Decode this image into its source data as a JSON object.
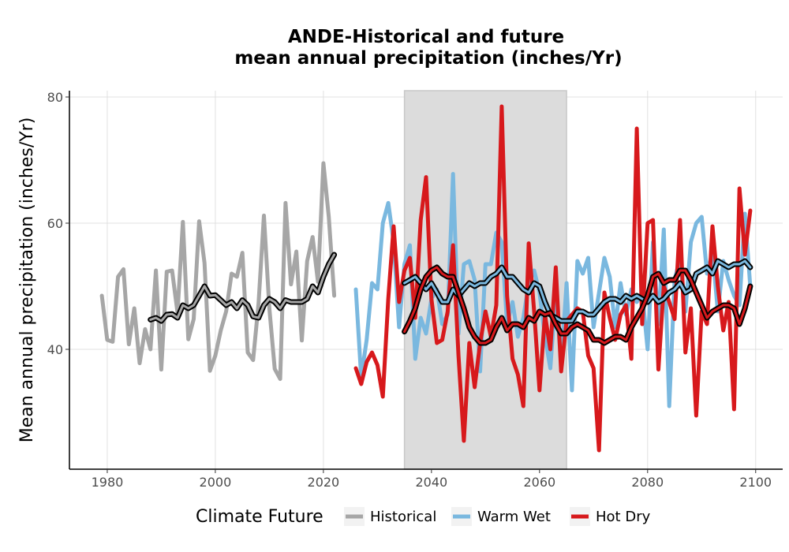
{
  "chart_data": {
    "type": "line",
    "title": [
      "ANDE-Historical and future",
      "mean annual precipitation (inches/Yr)"
    ],
    "xlabel": "",
    "ylabel": "Mean annual precipitation (inches/Yr)",
    "xlim": [
      1973,
      2105
    ],
    "ylim": [
      21,
      81
    ],
    "xticks": [
      1980,
      2000,
      2020,
      2040,
      2060,
      2080,
      2100
    ],
    "yticks": [
      40,
      60,
      80
    ],
    "grid": true,
    "shaded_period": [
      2035,
      2065
    ],
    "legend": {
      "title": "Climate Future",
      "placement": "bottom",
      "entries": [
        "Historical",
        "Warm Wet",
        "Hot Dry"
      ]
    },
    "colors": {
      "Historical": "#a6a6a6",
      "Warm Wet": "#7ab8df",
      "Hot Dry": "#d7191c",
      "smooth_outline": "#000000",
      "shade": "#dcdcdc"
    },
    "series": [
      {
        "name": "Historical",
        "x": [
          1979,
          1980,
          1981,
          1982,
          1983,
          1984,
          1985,
          1986,
          1987,
          1988,
          1989,
          1990,
          1991,
          1992,
          1993,
          1994,
          1995,
          1996,
          1997,
          1998,
          1999,
          2000,
          2001,
          2002,
          2003,
          2004,
          2005,
          2006,
          2007,
          2008,
          2009,
          2010,
          2011,
          2012,
          2013,
          2014,
          2015,
          2016,
          2017,
          2018,
          2019,
          2020,
          2021,
          2022
        ],
        "y": [
          48.5,
          41.5,
          41.2,
          51.5,
          52.7,
          40.8,
          46.5,
          37.8,
          43.2,
          40.0,
          52.5,
          36.8,
          52.3,
          52.5,
          45.8,
          60.2,
          41.6,
          44.8,
          60.3,
          53.7,
          36.6,
          39.0,
          43.0,
          46.0,
          52.0,
          51.5,
          55.3,
          39.5,
          38.3,
          47.3,
          61.2,
          46.5,
          36.9,
          35.3,
          63.2,
          50.3,
          55.5,
          41.4,
          54.0,
          57.8,
          50.7,
          69.5,
          61.0,
          48.5
        ]
      },
      {
        "name": "Warm Wet",
        "x": [
          2026,
          2027,
          2028,
          2029,
          2030,
          2031,
          2032,
          2033,
          2034,
          2035,
          2036,
          2037,
          2038,
          2039,
          2040,
          2041,
          2042,
          2043,
          2044,
          2045,
          2046,
          2047,
          2048,
          2049,
          2050,
          2051,
          2052,
          2053,
          2054,
          2055,
          2056,
          2057,
          2058,
          2059,
          2060,
          2061,
          2062,
          2063,
          2064,
          2065,
          2066,
          2067,
          2068,
          2069,
          2070,
          2071,
          2072,
          2073,
          2074,
          2075,
          2076,
          2077,
          2078,
          2079,
          2080,
          2081,
          2082,
          2083,
          2084,
          2085,
          2086,
          2087,
          2088,
          2089,
          2090,
          2091,
          2092,
          2093,
          2094,
          2095,
          2096,
          2097,
          2098,
          2099
        ],
        "y": [
          49.5,
          35.5,
          41.5,
          50.5,
          49.5,
          60.0,
          63.2,
          57.0,
          43.5,
          53.5,
          56.5,
          38.5,
          45.0,
          42.5,
          48.0,
          49.5,
          44.0,
          45.5,
          67.8,
          42.5,
          53.5,
          54.0,
          51.0,
          36.5,
          53.5,
          53.5,
          58.5,
          57.0,
          44.0,
          47.5,
          42.0,
          45.0,
          50.5,
          52.5,
          49.0,
          42.0,
          37.0,
          49.0,
          37.5,
          50.5,
          33.5,
          54.0,
          52.0,
          54.5,
          43.5,
          49.0,
          54.5,
          51.5,
          43.5,
          50.5,
          45.5,
          49.5,
          47.5,
          49.0,
          40.0,
          57.0,
          44.0,
          59.0,
          31.0,
          51.0,
          54.5,
          46.0,
          57.0,
          60.0,
          61.0,
          52.0,
          55.5,
          46.0,
          54.0,
          51.0,
          48.5,
          47.0,
          61.5,
          50.0
        ]
      },
      {
        "name": "Hot Dry",
        "x": [
          2026,
          2027,
          2028,
          2029,
          2030,
          2031,
          2032,
          2033,
          2034,
          2035,
          2036,
          2037,
          2038,
          2039,
          2040,
          2041,
          2042,
          2043,
          2044,
          2045,
          2046,
          2047,
          2048,
          2049,
          2050,
          2051,
          2052,
          2053,
          2054,
          2055,
          2056,
          2057,
          2058,
          2059,
          2060,
          2061,
          2062,
          2063,
          2064,
          2065,
          2066,
          2067,
          2068,
          2069,
          2070,
          2071,
          2072,
          2073,
          2074,
          2075,
          2076,
          2077,
          2078,
          2079,
          2080,
          2081,
          2082,
          2083,
          2084,
          2085,
          2086,
          2087,
          2088,
          2089,
          2090,
          2091,
          2092,
          2093,
          2094,
          2095,
          2096,
          2097,
          2098,
          2099
        ],
        "y": [
          37.0,
          34.5,
          38.0,
          39.5,
          37.5,
          32.5,
          48.0,
          59.5,
          47.5,
          52.5,
          54.5,
          45.0,
          60.5,
          67.3,
          48.0,
          41.0,
          41.5,
          46.0,
          56.5,
          39.0,
          25.5,
          41.0,
          34.0,
          41.0,
          46.0,
          42.0,
          47.0,
          78.5,
          48.5,
          38.5,
          36.0,
          31.0,
          56.8,
          46.0,
          33.5,
          45.5,
          40.0,
          53.0,
          36.5,
          44.5,
          45.5,
          46.5,
          46.0,
          39.0,
          37.0,
          24.0,
          49.0,
          45.0,
          41.5,
          45.5,
          47.0,
          38.5,
          75.0,
          44.0,
          60.0,
          60.5,
          36.8,
          50.0,
          47.5,
          44.8,
          60.5,
          39.5,
          46.5,
          29.5,
          46.0,
          44.0,
          59.5,
          50.0,
          43.0,
          47.5,
          30.5,
          65.5,
          55.0,
          62.0
        ]
      },
      {
        "name": "Historical (smoothed)",
        "x": [
          1988,
          1989,
          1990,
          1991,
          1992,
          1993,
          1994,
          1995,
          1996,
          1997,
          1998,
          1999,
          2000,
          2001,
          2002,
          2003,
          2004,
          2005,
          2006,
          2007,
          2008,
          2009,
          2010,
          2011,
          2012,
          2013,
          2014,
          2015,
          2016,
          2017,
          2018,
          2019,
          2020,
          2021,
          2022
        ],
        "y": [
          44.7,
          45.0,
          44.5,
          45.5,
          45.6,
          45.0,
          47.0,
          46.5,
          47.0,
          48.5,
          50.0,
          48.5,
          48.6,
          47.8,
          47.0,
          47.5,
          46.5,
          47.8,
          47.0,
          45.2,
          45.0,
          47.0,
          48.0,
          47.5,
          46.5,
          47.8,
          47.5,
          47.5,
          47.5,
          48.0,
          50.0,
          49.0,
          51.5,
          53.5,
          55.0
        ]
      },
      {
        "name": "Warm Wet (smoothed)",
        "x": [
          2035,
          2036,
          2037,
          2038,
          2039,
          2040,
          2041,
          2042,
          2043,
          2044,
          2045,
          2046,
          2047,
          2048,
          2049,
          2050,
          2051,
          2052,
          2053,
          2054,
          2055,
          2056,
          2057,
          2058,
          2059,
          2060,
          2061,
          2062,
          2063,
          2064,
          2065,
          2066,
          2067,
          2068,
          2069,
          2070,
          2071,
          2072,
          2073,
          2074,
          2075,
          2076,
          2077,
          2078,
          2079,
          2080,
          2081,
          2082,
          2083,
          2084,
          2085,
          2086,
          2087,
          2088,
          2089,
          2090,
          2091,
          2092,
          2093,
          2094,
          2095,
          2096,
          2097,
          2098,
          2099
        ],
        "y": [
          50.5,
          51.0,
          51.5,
          50.5,
          49.5,
          50.5,
          49.0,
          47.5,
          47.5,
          49.5,
          48.5,
          49.5,
          50.5,
          50.0,
          50.5,
          50.5,
          51.5,
          52.0,
          53.0,
          51.5,
          51.5,
          50.5,
          49.5,
          49.0,
          50.5,
          50.0,
          47.5,
          45.5,
          45.0,
          44.5,
          44.5,
          44.5,
          46.0,
          46.0,
          45.5,
          45.5,
          46.5,
          47.5,
          48.0,
          48.0,
          47.5,
          48.5,
          48.0,
          48.5,
          48.0,
          47.5,
          48.5,
          47.5,
          48.0,
          49.0,
          49.5,
          50.5,
          49.0,
          49.5,
          52.0,
          52.5,
          53.0,
          52.0,
          54.0,
          53.5,
          53.0,
          53.5,
          53.5,
          54.0,
          53.0
        ]
      },
      {
        "name": "Hot Dry (smoothed)",
        "x": [
          2035,
          2036,
          2037,
          2038,
          2039,
          2040,
          2041,
          2042,
          2043,
          2044,
          2045,
          2046,
          2047,
          2048,
          2049,
          2050,
          2051,
          2052,
          2053,
          2054,
          2055,
          2056,
          2057,
          2058,
          2059,
          2060,
          2061,
          2062,
          2063,
          2064,
          2065,
          2066,
          2067,
          2068,
          2069,
          2070,
          2071,
          2072,
          2073,
          2074,
          2075,
          2076,
          2077,
          2078,
          2079,
          2080,
          2081,
          2082,
          2083,
          2084,
          2085,
          2086,
          2087,
          2088,
          2089,
          2090,
          2091,
          2092,
          2093,
          2094,
          2095,
          2096,
          2097,
          2098,
          2099
        ],
        "y": [
          42.8,
          44.5,
          46.5,
          49.5,
          51.5,
          52.5,
          53.0,
          52.0,
          51.5,
          51.5,
          49.0,
          46.5,
          43.5,
          42.0,
          41.0,
          41.0,
          41.5,
          43.5,
          45.0,
          43.0,
          44.0,
          44.0,
          43.5,
          45.0,
          44.5,
          46.0,
          45.5,
          45.8,
          44.0,
          42.5,
          42.5,
          43.5,
          44.0,
          43.5,
          43.0,
          41.5,
          41.5,
          41.0,
          41.5,
          42.0,
          42.0,
          41.5,
          43.5,
          45.0,
          46.5,
          48.5,
          51.5,
          52.0,
          50.5,
          51.0,
          51.0,
          52.5,
          52.5,
          51.0,
          49.0,
          47.0,
          45.0,
          46.0,
          46.5,
          47.0,
          47.0,
          46.5,
          44.0,
          46.5,
          50.0
        ]
      }
    ]
  }
}
